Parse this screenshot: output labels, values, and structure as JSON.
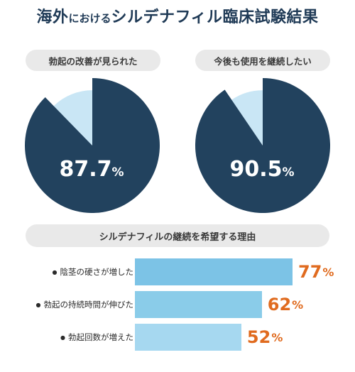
{
  "title": {
    "part1": "海外",
    "part2": "における",
    "part3": "シルデナフィル臨床試験結果"
  },
  "colors": {
    "pie_main": "#22425e",
    "pie_light": "#c9e6f5",
    "bar1": "#7cc3e6",
    "bar2": "#8acce9",
    "bar3": "#a6d8f0",
    "accent": "#e06b1f"
  },
  "chart_data": [
    {
      "type": "pie",
      "title": "勃起の改善が見られた",
      "values": [
        87.7,
        12.3
      ],
      "display_num": "87.7",
      "unit": "%"
    },
    {
      "type": "pie",
      "title": "今後も使用を継続したい",
      "values": [
        90.5,
        9.5
      ],
      "display_num": "90.5",
      "unit": "%"
    },
    {
      "type": "bar",
      "title": "シルデナフィルの継続を希望する理由",
      "categories": [
        "陰茎の硬さが増した",
        "勃起の持続時間が伸びた",
        "勃起回数が増えた"
      ],
      "values": [
        77,
        62,
        52
      ],
      "value_labels": [
        "77",
        "62",
        "52"
      ],
      "unit": "%",
      "bullet": "●"
    }
  ]
}
